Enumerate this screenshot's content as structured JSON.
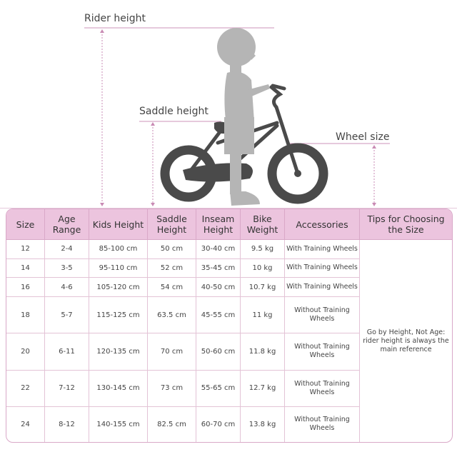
{
  "labels": {
    "rider_height": "Rider height",
    "saddle_height": "Saddle height",
    "wheel_size": "Wheel size"
  },
  "colors": {
    "accent": "#c98bb4",
    "header_bg": "#ecc4de",
    "bike": "#4a4a4a",
    "child": "#b5b5b5"
  },
  "table": {
    "headers": [
      "Size",
      "Age Range",
      "Kids Height",
      "Saddle Height",
      "Inseam Height",
      "Bike Weight",
      "Accessories",
      "Tips for Choosing the Size"
    ],
    "rows": [
      [
        "12",
        "2-4",
        "85-100 cm",
        "50 cm",
        "30-40 cm",
        "9.5 kg",
        "With Training Wheels"
      ],
      [
        "14",
        "3-5",
        "95-110 cm",
        "52 cm",
        "35-45 cm",
        "10 kg",
        "With Training Wheels"
      ],
      [
        "16",
        "4-6",
        "105-120 cm",
        "54 cm",
        "40-50 cm",
        "10.7 kg",
        "With Training Wheels"
      ],
      [
        "18",
        "5-7",
        "115-125 cm",
        "63.5 cm",
        "45-55 cm",
        "11 kg",
        "Without Training Wheels"
      ],
      [
        "20",
        "6-11",
        "120-135 cm",
        "70 cm",
        "50-60 cm",
        "11.8 kg",
        "Without Training Wheels"
      ],
      [
        "22",
        "7-12",
        "130-145 cm",
        "73 cm",
        "55-65 cm",
        "12.7 kg",
        "Without Training Wheels"
      ],
      [
        "24",
        "8-12",
        "140-155 cm",
        "82.5 cm",
        "60-70 cm",
        "13.8 kg",
        "Without Training Wheels"
      ]
    ],
    "tip": "Go by Height, Not Age: rider height is always the main reference"
  }
}
